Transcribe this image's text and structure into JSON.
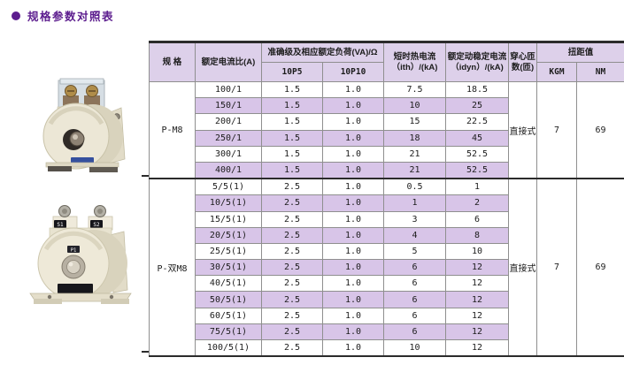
{
  "page": {
    "title": "规格参数对照表"
  },
  "colors": {
    "accent": "#5c1d8e",
    "header_bg": "#ddd0ea",
    "stripe_bg": "#d8c5e8",
    "grid": "#8f8f8f",
    "heavy_rule": "#2b2b2b"
  },
  "products": [
    {
      "name": "P-M8",
      "markings": []
    },
    {
      "name": "P-双M8",
      "markings": [
        "S1",
        "S2",
        "P1"
      ]
    }
  ],
  "table": {
    "headers": {
      "spec": "规 格",
      "ratio": "额定电流比(A)",
      "accuracy_group": "准确级及相应额定负荷(VA)/Ω",
      "accuracy_cols": [
        "10P5",
        "10P10"
      ],
      "ith": "短时热电流\n（ith）/(kA)",
      "idyn": "额定动稳定电流\n（idyn）/(kA)",
      "turns": "穿心匝\n数(匝)",
      "torque_group": "扭距值",
      "torque_cols": [
        "KGM",
        "NM"
      ]
    },
    "groups": [
      {
        "spec": "P-M8",
        "turns": "直接式",
        "kgm": "7",
        "nm": "69",
        "rows": [
          {
            "ratio": "100/1",
            "p5": "1.5",
            "p10": "1.0",
            "ith": "7.5",
            "idyn": "18.5"
          },
          {
            "ratio": "150/1",
            "p5": "1.5",
            "p10": "1.0",
            "ith": "10",
            "idyn": "25"
          },
          {
            "ratio": "200/1",
            "p5": "1.5",
            "p10": "1.0",
            "ith": "15",
            "idyn": "22.5"
          },
          {
            "ratio": "250/1",
            "p5": "1.5",
            "p10": "1.0",
            "ith": "18",
            "idyn": "45"
          },
          {
            "ratio": "300/1",
            "p5": "1.5",
            "p10": "1.0",
            "ith": "21",
            "idyn": "52.5"
          },
          {
            "ratio": "400/1",
            "p5": "1.5",
            "p10": "1.0",
            "ith": "21",
            "idyn": "52.5"
          }
        ]
      },
      {
        "spec": "P-双M8",
        "turns": "直接式",
        "kgm": "7",
        "nm": "69",
        "rows": [
          {
            "ratio": "5/5(1)",
            "p5": "2.5",
            "p10": "1.0",
            "ith": "0.5",
            "idyn": "1"
          },
          {
            "ratio": "10/5(1)",
            "p5": "2.5",
            "p10": "1.0",
            "ith": "1",
            "idyn": "2"
          },
          {
            "ratio": "15/5(1)",
            "p5": "2.5",
            "p10": "1.0",
            "ith": "3",
            "idyn": "6"
          },
          {
            "ratio": "20/5(1)",
            "p5": "2.5",
            "p10": "1.0",
            "ith": "4",
            "idyn": "8"
          },
          {
            "ratio": "25/5(1)",
            "p5": "2.5",
            "p10": "1.0",
            "ith": "5",
            "idyn": "10"
          },
          {
            "ratio": "30/5(1)",
            "p5": "2.5",
            "p10": "1.0",
            "ith": "6",
            "idyn": "12"
          },
          {
            "ratio": "40/5(1)",
            "p5": "2.5",
            "p10": "1.0",
            "ith": "6",
            "idyn": "12"
          },
          {
            "ratio": "50/5(1)",
            "p5": "2.5",
            "p10": "1.0",
            "ith": "6",
            "idyn": "12"
          },
          {
            "ratio": "60/5(1)",
            "p5": "2.5",
            "p10": "1.0",
            "ith": "6",
            "idyn": "12"
          },
          {
            "ratio": "75/5(1)",
            "p5": "2.5",
            "p10": "1.0",
            "ith": "6",
            "idyn": "12"
          },
          {
            "ratio": "100/5(1)",
            "p5": "2.5",
            "p10": "1.0",
            "ith": "10",
            "idyn": "12"
          }
        ]
      }
    ]
  }
}
